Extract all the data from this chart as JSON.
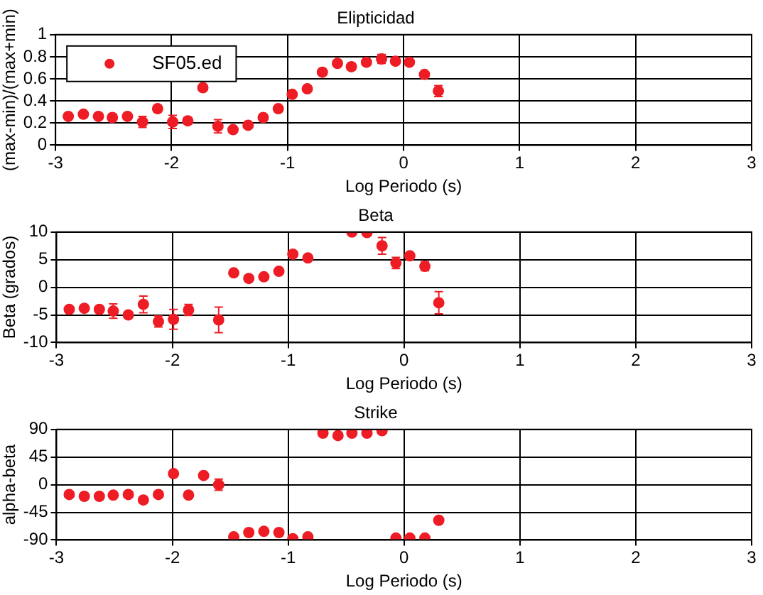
{
  "chart_data": [
    {
      "type": "scatter",
      "title": "Elipticidad",
      "xlabel": "Log Periodo (s)",
      "ylabel": "(max-min)/(max+min)",
      "x": [
        -2.89,
        -2.76,
        -2.63,
        -2.51,
        -2.38,
        -2.25,
        -2.12,
        -1.99,
        -1.86,
        -1.73,
        -1.6,
        -1.47,
        -1.34,
        -1.21,
        -1.08,
        -0.96,
        -0.83,
        -0.7,
        -0.57,
        -0.45,
        -0.32,
        -0.19,
        -0.07,
        0.05,
        0.18,
        0.3
      ],
      "series": [
        {
          "name": "SF05.ed",
          "color": "#ee1c24",
          "values": [
            0.26,
            0.28,
            0.26,
            0.25,
            0.26,
            0.21,
            0.33,
            0.21,
            0.22,
            0.52,
            0.17,
            0.14,
            0.18,
            0.25,
            0.33,
            0.46,
            0.51,
            0.66,
            0.74,
            0.71,
            0.75,
            0.78,
            0.76,
            0.75,
            0.64,
            0.49
          ],
          "errors": [
            null,
            null,
            null,
            0.03,
            null,
            0.05,
            0.03,
            0.06,
            0.03,
            null,
            0.06,
            null,
            null,
            null,
            null,
            null,
            null,
            null,
            null,
            0.03,
            null,
            0.04,
            null,
            null,
            null,
            0.05
          ]
        }
      ],
      "xlim": [
        -3,
        3
      ],
      "xticks": [
        -3,
        -2,
        -1,
        0,
        1,
        2,
        3
      ],
      "ylim": [
        0,
        1
      ],
      "yticks": [
        0,
        0.2,
        0.4,
        0.6,
        0.8,
        1
      ],
      "grid": true,
      "legend": "top left",
      "marker": "circle"
    },
    {
      "type": "scatter",
      "title": "Beta",
      "xlabel": "Log Periodo (s)",
      "ylabel": "Beta (grados)",
      "x": [
        -2.89,
        -2.76,
        -2.63,
        -2.51,
        -2.38,
        -2.25,
        -2.12,
        -1.99,
        -1.86,
        -1.73,
        -1.6,
        -1.47,
        -1.34,
        -1.21,
        -1.08,
        -0.96,
        -0.83,
        -0.7,
        -0.57,
        -0.45,
        -0.32,
        -0.19,
        -0.07,
        0.05,
        0.18,
        0.3
      ],
      "series": [
        {
          "color": "#ee1c24",
          "values": [
            -4.0,
            -3.8,
            -4.0,
            -4.3,
            -5.0,
            -3.1,
            -6.2,
            -5.8,
            -4.1,
            null,
            -5.9,
            2.6,
            1.6,
            1.9,
            2.9,
            6.0,
            5.3,
            null,
            null,
            10.0,
            9.9,
            7.5,
            4.4,
            5.7,
            3.8,
            -2.8
          ],
          "errors": [
            null,
            null,
            null,
            1.3,
            null,
            1.5,
            1.0,
            1.8,
            1.0,
            null,
            2.3,
            null,
            null,
            null,
            null,
            null,
            null,
            null,
            null,
            null,
            null,
            1.5,
            1.0,
            null,
            0.8,
            2.0
          ]
        }
      ],
      "xlim": [
        -3,
        3
      ],
      "xticks": [
        -3,
        -2,
        -1,
        0,
        1,
        2,
        3
      ],
      "ylim": [
        -10,
        10
      ],
      "yticks": [
        -10,
        -5,
        0,
        5,
        10
      ],
      "grid": true,
      "marker": "circle"
    },
    {
      "type": "scatter",
      "title": "Strike",
      "xlabel": "Log Periodo (s)",
      "ylabel": "alpha-beta",
      "x": [
        -2.89,
        -2.76,
        -2.63,
        -2.51,
        -2.38,
        -2.25,
        -2.12,
        -1.99,
        -1.86,
        -1.73,
        -1.6,
        -1.47,
        -1.34,
        -1.21,
        -1.08,
        -0.96,
        -0.83,
        -0.7,
        -0.57,
        -0.45,
        -0.32,
        -0.19,
        -0.07,
        0.05,
        0.18,
        0.3
      ],
      "series": [
        {
          "color": "#ee1c24",
          "values": [
            -16,
            -19,
            -19,
            -17,
            -16,
            -25,
            -16,
            18,
            -17,
            15,
            0,
            -85,
            -78,
            -76,
            -78,
            -88,
            -85,
            84,
            80,
            84,
            84,
            88,
            -87,
            -87,
            -87,
            -58
          ],
          "errors": [
            null,
            null,
            null,
            null,
            null,
            5,
            null,
            null,
            5,
            null,
            9,
            null,
            null,
            null,
            null,
            null,
            null,
            null,
            null,
            null,
            null,
            null,
            null,
            null,
            null,
            5
          ]
        }
      ],
      "xlim": [
        -3,
        3
      ],
      "xticks": [
        -3,
        -2,
        -1,
        0,
        1,
        2,
        3
      ],
      "ylim": [
        -90,
        90
      ],
      "yticks": [
        -90,
        -45,
        0,
        45,
        90
      ],
      "grid": true,
      "marker": "circle"
    }
  ]
}
